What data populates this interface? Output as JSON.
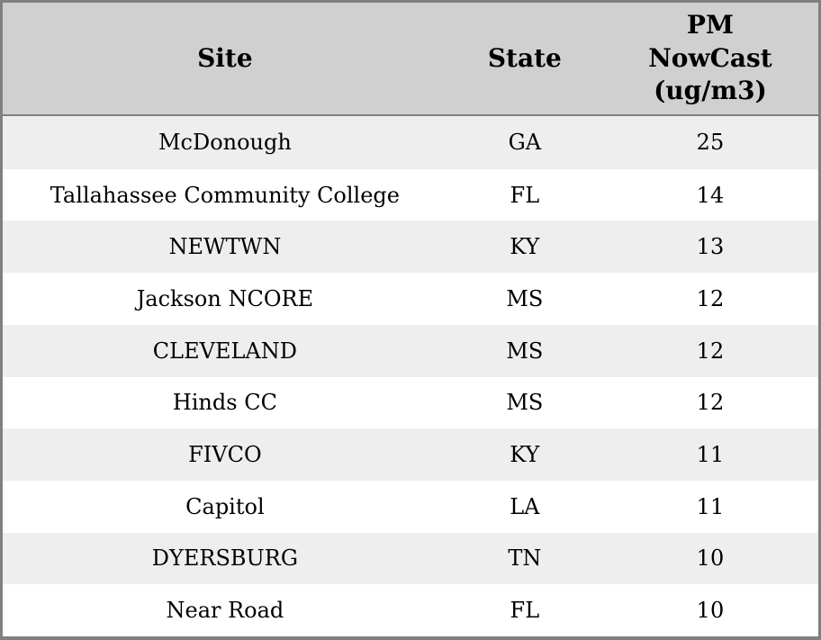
{
  "chart_data": {
    "type": "table",
    "columns": [
      "Site",
      "State",
      "PM NowCast (ug/m3)"
    ],
    "rows": [
      [
        "McDonough",
        "GA",
        25
      ],
      [
        "Tallahassee Community College",
        "FL",
        14
      ],
      [
        "NEWTWN",
        "KY",
        13
      ],
      [
        "Jackson NCORE",
        "MS",
        12
      ],
      [
        "CLEVELAND",
        "MS",
        12
      ],
      [
        "Hinds CC",
        "MS",
        12
      ],
      [
        "FIVCO",
        "KY",
        11
      ],
      [
        "Capitol",
        "LA",
        11
      ],
      [
        "DYERSBURG",
        "TN",
        10
      ],
      [
        "Near Road",
        "FL",
        10
      ]
    ],
    "layout": {
      "striped": true,
      "header_position": "top",
      "text_align": "center"
    }
  },
  "colors": {
    "frame_border": "#808080",
    "header_bg": "#d0d0d0",
    "header_separator": "#7f7f7f",
    "stripe_row_bg": "#eeeeee",
    "plain_row_bg": "#ffffff",
    "text": "#000000"
  }
}
